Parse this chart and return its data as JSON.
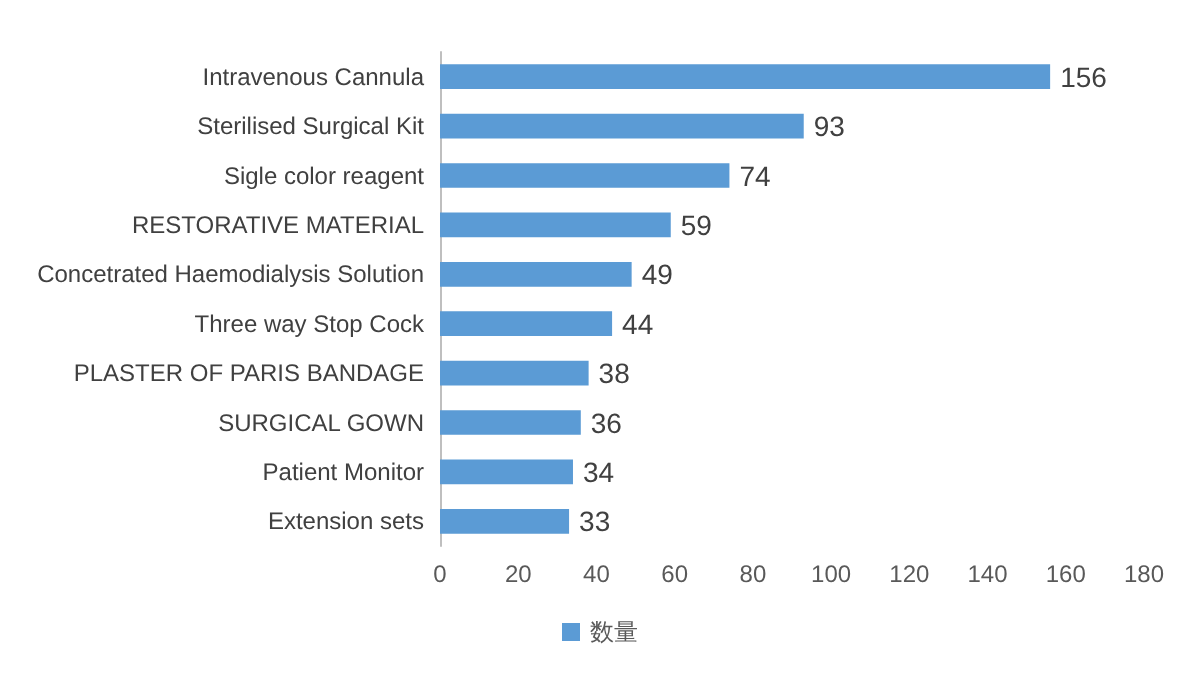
{
  "chart_data": {
    "type": "bar",
    "orientation": "horizontal",
    "categories": [
      "Intravenous Cannula",
      "Sterilised Surgical Kit",
      "Sigle color reagent",
      "RESTORATIVE MATERIAL",
      "Concetrated Haemodialysis Solution",
      "Three way Stop Cock",
      "PLASTER OF PARIS BANDAGE",
      "SURGICAL GOWN",
      "Patient Monitor",
      "Extension sets"
    ],
    "series": [
      {
        "name": "数量",
        "color": "#5b9bd5",
        "values": [
          156,
          93,
          74,
          59,
          49,
          44,
          38,
          36,
          34,
          33
        ]
      }
    ],
    "xlim": [
      0,
      180
    ],
    "xticks": [
      0,
      20,
      40,
      60,
      80,
      100,
      120,
      140,
      160,
      180
    ],
    "data_labels": true,
    "legend": "bottom",
    "grid": false
  }
}
